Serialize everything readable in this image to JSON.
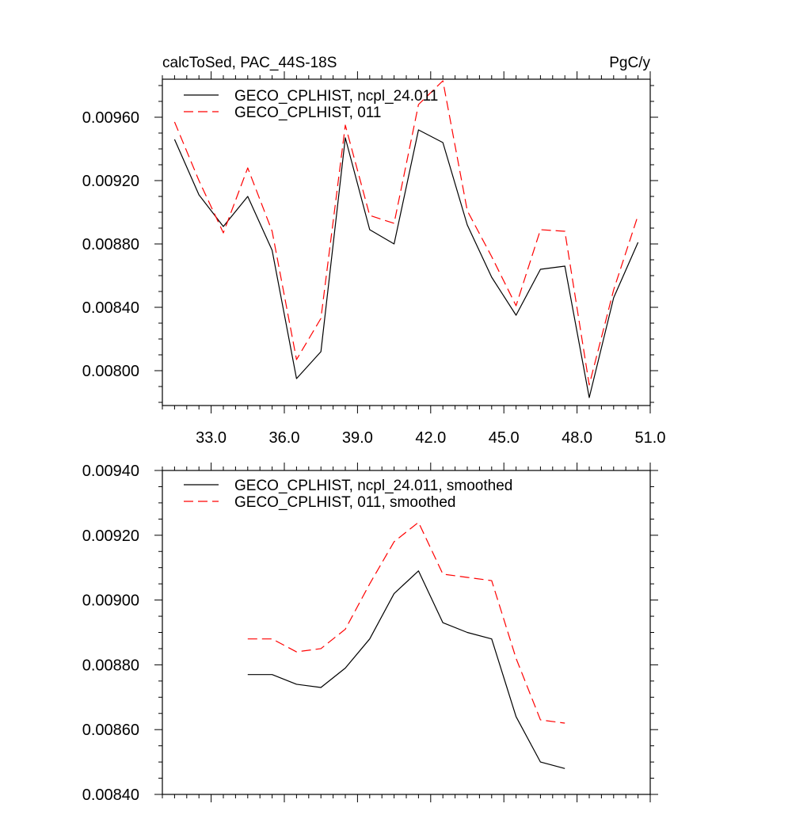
{
  "chart_data": [
    {
      "type": "line",
      "title": "calcToSed, PAC_44S-18S",
      "units": "PgC/y",
      "x": [
        31.5,
        32.5,
        33.5,
        34.5,
        35.5,
        36.5,
        37.5,
        38.5,
        39.5,
        40.5,
        41.5,
        42.5,
        43.5,
        44.5,
        45.5,
        46.5,
        47.5,
        48.5,
        49.5,
        50.5
      ],
      "xlim": [
        31.0,
        51.0
      ],
      "ylim": [
        0.00778,
        0.00984
      ],
      "xticks": [
        "33.0",
        "36.0",
        "39.0",
        "42.0",
        "45.0",
        "48.0",
        "51.0"
      ],
      "yticks": [
        "0.00800",
        "0.00840",
        "0.00880",
        "0.00920",
        "0.00960"
      ],
      "series": [
        {
          "name": "GECO_CPLHIST, ncpl_24.011",
          "color": "#000000",
          "dash": "solid",
          "values": [
            0.00946,
            0.00911,
            0.00891,
            0.0091,
            0.00876,
            0.00795,
            0.00812,
            0.00947,
            0.00889,
            0.0088,
            0.00952,
            0.00944,
            0.00892,
            0.00859,
            0.00835,
            0.00864,
            0.00866,
            0.00783,
            0.00846,
            0.00881
          ]
        },
        {
          "name": "GECO_CPLHIST, 011",
          "color": "#ff0000",
          "dash": "dashed",
          "values": [
            0.00957,
            0.0092,
            0.00887,
            0.00928,
            0.00888,
            0.00807,
            0.00833,
            0.00955,
            0.00898,
            0.00893,
            0.00968,
            0.00983,
            0.00901,
            0.00872,
            0.00841,
            0.00889,
            0.00888,
            0.00791,
            0.00851,
            0.00898
          ]
        }
      ]
    },
    {
      "type": "line",
      "x": [
        34.5,
        35.5,
        36.5,
        37.5,
        38.5,
        39.5,
        40.5,
        41.5,
        42.5,
        43.5,
        44.5,
        45.5,
        46.5,
        47.5
      ],
      "xlim": [
        31.0,
        51.0
      ],
      "ylim": [
        0.0084,
        0.0094
      ],
      "yticks": [
        "0.00840",
        "0.00860",
        "0.00880",
        "0.00900",
        "0.00920",
        "0.00940"
      ],
      "series": [
        {
          "name": "GECO_CPLHIST, ncpl_24.011, smoothed",
          "color": "#000000",
          "dash": "solid",
          "values": [
            0.00877,
            0.00877,
            0.00874,
            0.00873,
            0.00879,
            0.00888,
            0.00902,
            0.00909,
            0.00893,
            0.0089,
            0.00888,
            0.00864,
            0.0085,
            0.00848
          ]
        },
        {
          "name": "GECO_CPLHIST, 011, smoothed",
          "color": "#ff0000",
          "dash": "dashed",
          "values": [
            0.00888,
            0.00888,
            0.00884,
            0.00885,
            0.00891,
            0.00905,
            0.00918,
            0.00924,
            0.00908,
            0.00907,
            0.00906,
            0.00882,
            0.00863,
            0.00862
          ]
        }
      ]
    }
  ]
}
